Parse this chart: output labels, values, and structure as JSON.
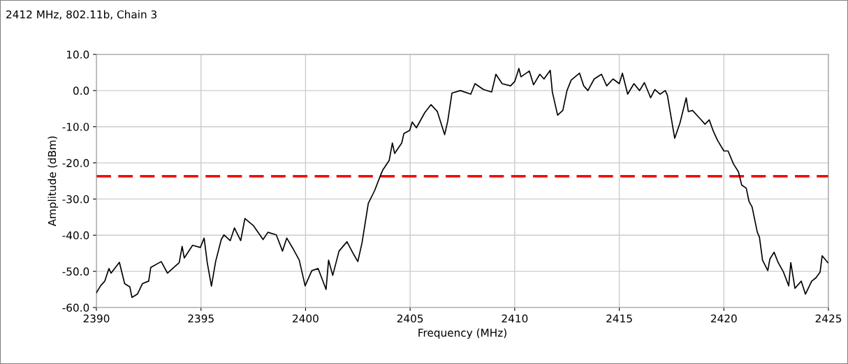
{
  "chart_data": {
    "type": "line",
    "title": "2412 MHz, 802.11b, Chain 3",
    "xlabel": "Frequency (MHz)",
    "ylabel": "Amplitude (dBm)",
    "x": [
      2390.0,
      2390.2,
      2390.4,
      2390.6,
      2390.7,
      2391.1,
      2391.35,
      2391.6,
      2391.7,
      2391.96,
      2392.2,
      2392.5,
      2392.6,
      2393.1,
      2393.4,
      2393.96,
      2394.1,
      2394.2,
      2394.6,
      2394.97,
      2395.15,
      2395.3,
      2395.5,
      2395.7,
      2395.97,
      2396.1,
      2396.4,
      2396.6,
      2396.9,
      2397.1,
      2397.5,
      2397.97,
      2398.2,
      2398.6,
      2398.9,
      2399.1,
      2399.4,
      2399.7,
      2399.98,
      2400.3,
      2400.6,
      2400.98,
      2401.1,
      2401.3,
      2401.6,
      2401.98,
      2402.3,
      2402.5,
      2402.7,
      2403.0,
      2403.3,
      2403.6,
      2403.7,
      2404.0,
      2404.15,
      2404.26,
      2404.6,
      2404.7,
      2404.98,
      2405.1,
      2405.3,
      2405.7,
      2406.0,
      2406.3,
      2406.65,
      2406.8,
      2407.0,
      2407.4,
      2407.9,
      2408.1,
      2408.5,
      2408.9,
      2409.1,
      2409.4,
      2409.8,
      2410.0,
      2410.2,
      2410.3,
      2410.7,
      2410.9,
      2411.2,
      2411.4,
      2411.7,
      2411.8,
      2412.05,
      2412.3,
      2412.5,
      2412.7,
      2413.1,
      2413.3,
      2413.5,
      2413.8,
      2414.15,
      2414.4,
      2414.7,
      2415.0,
      2415.15,
      2415.4,
      2415.7,
      2415.97,
      2416.2,
      2416.5,
      2416.7,
      2416.95,
      2417.2,
      2417.3,
      2417.45,
      2417.65,
      2417.9,
      2418.2,
      2418.3,
      2418.5,
      2418.85,
      2419.1,
      2419.3,
      2419.5,
      2419.7,
      2420.0,
      2420.2,
      2420.46,
      2420.7,
      2420.85,
      2421.07,
      2421.2,
      2421.35,
      2421.6,
      2421.7,
      2421.85,
      2422.1,
      2422.2,
      2422.4,
      2422.6,
      2422.85,
      2423.1,
      2423.2,
      2423.4,
      2423.7,
      2423.9,
      2424.2,
      2424.4,
      2424.6,
      2424.7,
      2424.97
    ],
    "series": [
      {
        "color": "#000000",
        "values": [
          -55.9,
          -54,
          -52.7,
          -49.2,
          -50.5,
          -47.5,
          -53.4,
          -54.3,
          -57.2,
          -56.3,
          -53.4,
          -52.7,
          -48.9,
          -47.3,
          -50.5,
          -47.6,
          -43.1,
          -46.3,
          -42.8,
          -43.4,
          -40.8,
          -47.6,
          -54.1,
          -47.3,
          -41.2,
          -39.9,
          -41.5,
          -38,
          -41.5,
          -35.4,
          -37.3,
          -41.2,
          -39.2,
          -39.9,
          -44.4,
          -40.8,
          -43.7,
          -46.9,
          -54,
          -49.8,
          -49.2,
          -55,
          -46.9,
          -51.1,
          -44.4,
          -41.8,
          -45.3,
          -47.3,
          -42.1,
          -31.2,
          -27.7,
          -23.2,
          -21.9,
          -19.3,
          -14.5,
          -17.4,
          -14.5,
          -11.9,
          -11,
          -8.7,
          -10.3,
          -6.1,
          -3.9,
          -5.8,
          -12.2,
          -8.4,
          -0.7,
          0,
          -1,
          1.9,
          0.3,
          -0.4,
          4.5,
          1.9,
          1.3,
          2.5,
          6.1,
          3.8,
          5.4,
          1.6,
          4.5,
          3.2,
          5.6,
          -0.4,
          -6.8,
          -5.5,
          0,
          2.9,
          4.8,
          1.3,
          0,
          3.2,
          4.5,
          1.3,
          3.2,
          1.9,
          4.8,
          -1,
          1.9,
          0,
          2.2,
          -2,
          0.3,
          -1,
          0,
          -1.3,
          -6.4,
          -13.2,
          -9,
          -2,
          -5.8,
          -5.5,
          -7.7,
          -9.3,
          -8.1,
          -11.3,
          -13.8,
          -16.7,
          -16.7,
          -20.3,
          -22.5,
          -26.1,
          -27,
          -30.6,
          -32.2,
          -39.2,
          -40.5,
          -46.9,
          -49.8,
          -46.6,
          -44.7,
          -47.6,
          -50.2,
          -54,
          -47.6,
          -54.7,
          -52.7,
          -56.3,
          -52.7,
          -51.8,
          -50.2,
          -45.7,
          -47.6
        ]
      }
    ],
    "xlim": [
      2390,
      2425
    ],
    "xticks": [
      2390,
      2395,
      2400,
      2405,
      2410,
      2415,
      2420,
      2425
    ],
    "ylim": [
      -60,
      10
    ],
    "yticks": [
      {
        "value": -60,
        "label": "-60.0"
      },
      {
        "value": -50,
        "label": "-50.0"
      },
      {
        "value": -40,
        "label": "-40.0"
      },
      {
        "value": -30,
        "label": "-30.0"
      },
      {
        "value": -20,
        "label": "-20.0"
      },
      {
        "value": -10,
        "label": "-10.0"
      },
      {
        "value": 0,
        "label": "0.0"
      },
      {
        "value": 10,
        "label": "10.0"
      }
    ],
    "ref_lines": [
      {
        "axis": "y",
        "value": -23.7,
        "color": "#ff0000",
        "line_style": "dashed"
      }
    ],
    "grid": true,
    "marker": "none",
    "line_style": "solid"
  }
}
